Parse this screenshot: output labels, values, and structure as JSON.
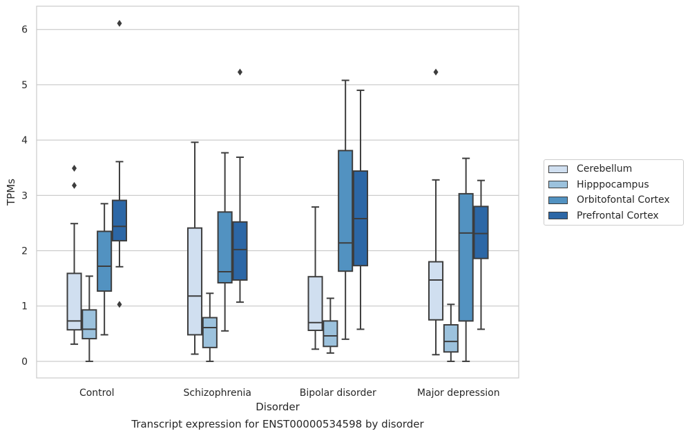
{
  "caption": "Transcript expression for ENST00000534598 by disorder",
  "chart_data": {
    "type": "boxplot",
    "xlabel": "Disorder",
    "ylabel": "TPMs",
    "ylim": [
      -0.3,
      6.42
    ],
    "yticks": [
      0,
      1,
      2,
      3,
      4,
      5,
      6
    ],
    "grid": true,
    "legend_position": "right-center",
    "categories": [
      "Control",
      "Schizophrenia",
      "Bipolar disorder",
      "Major depression"
    ],
    "series": [
      {
        "name": "Cerebellum",
        "color": "#d0dff0",
        "boxes": [
          {
            "whislo": 0.31,
            "q1": 0.57,
            "med": 0.73,
            "q3": 1.59,
            "whishi": 2.49,
            "fliers": [
              3.18,
              3.49
            ]
          },
          {
            "whislo": 0.13,
            "q1": 0.48,
            "med": 1.18,
            "q3": 2.41,
            "whishi": 3.96,
            "fliers": []
          },
          {
            "whislo": 0.22,
            "q1": 0.56,
            "med": 0.7,
            "q3": 1.53,
            "whishi": 2.79,
            "fliers": []
          },
          {
            "whislo": 0.12,
            "q1": 0.75,
            "med": 1.47,
            "q3": 1.8,
            "whishi": 3.28,
            "fliers": [
              5.23
            ]
          }
        ]
      },
      {
        "name": "Hipppocampus",
        "color": "#9cc2dd",
        "boxes": [
          {
            "whislo": 0.0,
            "q1": 0.41,
            "med": 0.58,
            "q3": 0.93,
            "whishi": 1.54,
            "fliers": []
          },
          {
            "whislo": 0.0,
            "q1": 0.25,
            "med": 0.61,
            "q3": 0.79,
            "whishi": 1.23,
            "fliers": []
          },
          {
            "whislo": 0.15,
            "q1": 0.27,
            "med": 0.46,
            "q3": 0.73,
            "whishi": 1.14,
            "fliers": []
          },
          {
            "whislo": 0.0,
            "q1": 0.17,
            "med": 0.36,
            "q3": 0.66,
            "whishi": 1.03,
            "fliers": []
          }
        ]
      },
      {
        "name": "Orbitofontal Cortex",
        "color": "#5292c1",
        "boxes": [
          {
            "whislo": 0.48,
            "q1": 1.27,
            "med": 1.72,
            "q3": 2.35,
            "whishi": 2.85,
            "fliers": []
          },
          {
            "whislo": 0.55,
            "q1": 1.42,
            "med": 1.62,
            "q3": 2.7,
            "whishi": 3.77,
            "fliers": []
          },
          {
            "whislo": 0.4,
            "q1": 1.63,
            "med": 2.14,
            "q3": 3.81,
            "whishi": 5.08,
            "fliers": []
          },
          {
            "whislo": 0.0,
            "q1": 0.73,
            "med": 2.32,
            "q3": 3.03,
            "whishi": 3.67,
            "fliers": []
          }
        ]
      },
      {
        "name": "Prefrontal Cortex",
        "color": "#2c67a6",
        "boxes": [
          {
            "whislo": 1.71,
            "q1": 2.18,
            "med": 2.44,
            "q3": 2.91,
            "whishi": 3.61,
            "fliers": [
              1.03,
              6.11
            ]
          },
          {
            "whislo": 1.07,
            "q1": 1.47,
            "med": 2.02,
            "q3": 2.52,
            "whishi": 3.69,
            "fliers": [
              5.23
            ]
          },
          {
            "whislo": 0.58,
            "q1": 1.73,
            "med": 2.58,
            "q3": 3.44,
            "whishi": 4.9,
            "fliers": []
          },
          {
            "whislo": 0.58,
            "q1": 1.86,
            "med": 2.31,
            "q3": 2.8,
            "whishi": 3.27,
            "fliers": []
          }
        ]
      }
    ]
  }
}
